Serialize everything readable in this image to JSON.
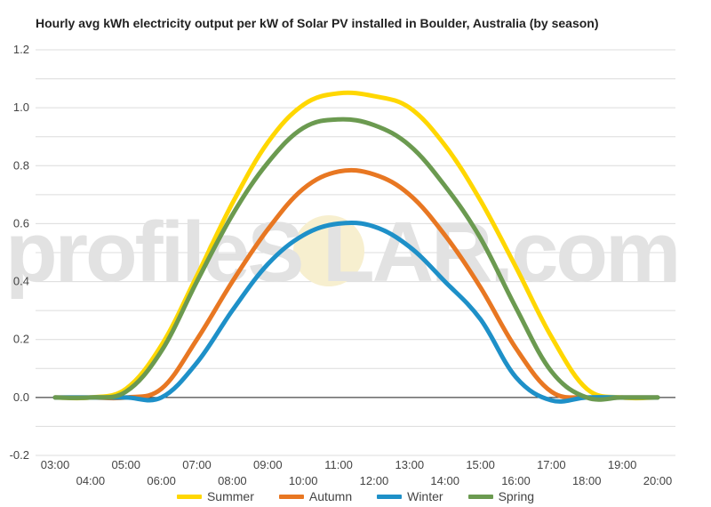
{
  "chart_data": {
    "type": "line",
    "title": "Hourly avg kWh electricity output per kW of Solar PV installed in Boulder, Australia (by season)",
    "xlabel": "",
    "ylabel": "",
    "ylim": [
      -0.2,
      1.2
    ],
    "yticks": [
      "-0.2",
      "0.0",
      "0.2",
      "0.4",
      "0.6",
      "0.8",
      "1.0",
      "1.2"
    ],
    "categories": [
      "03:00",
      "04:00",
      "05:00",
      "06:00",
      "07:00",
      "08:00",
      "09:00",
      "10:00",
      "11:00",
      "12:00",
      "13:00",
      "14:00",
      "15:00",
      "16:00",
      "17:00",
      "18:00",
      "19:00",
      "20:00"
    ],
    "grid": true,
    "legend_position": "bottom",
    "series": [
      {
        "name": "Summer",
        "color": "#FFD700",
        "values": [
          0,
          0,
          0.03,
          0.18,
          0.42,
          0.67,
          0.88,
          1.01,
          1.05,
          1.04,
          1.0,
          0.87,
          0.68,
          0.45,
          0.21,
          0.03,
          0,
          0
        ]
      },
      {
        "name": "Autumn",
        "color": "#E87722",
        "values": [
          0,
          0,
          0,
          0.03,
          0.2,
          0.4,
          0.58,
          0.72,
          0.78,
          0.77,
          0.7,
          0.56,
          0.38,
          0.17,
          0.02,
          0,
          0,
          0
        ]
      },
      {
        "name": "Winter",
        "color": "#1E90C8",
        "values": [
          0,
          0,
          0,
          0,
          0.12,
          0.3,
          0.46,
          0.56,
          0.6,
          0.59,
          0.52,
          0.4,
          0.27,
          0.07,
          -0.01,
          0,
          0,
          0
        ]
      },
      {
        "name": "Spring",
        "color": "#6B9A50",
        "values": [
          0,
          0,
          0.02,
          0.16,
          0.4,
          0.63,
          0.81,
          0.93,
          0.96,
          0.94,
          0.87,
          0.73,
          0.55,
          0.31,
          0.09,
          0,
          0,
          0
        ]
      }
    ]
  }
}
